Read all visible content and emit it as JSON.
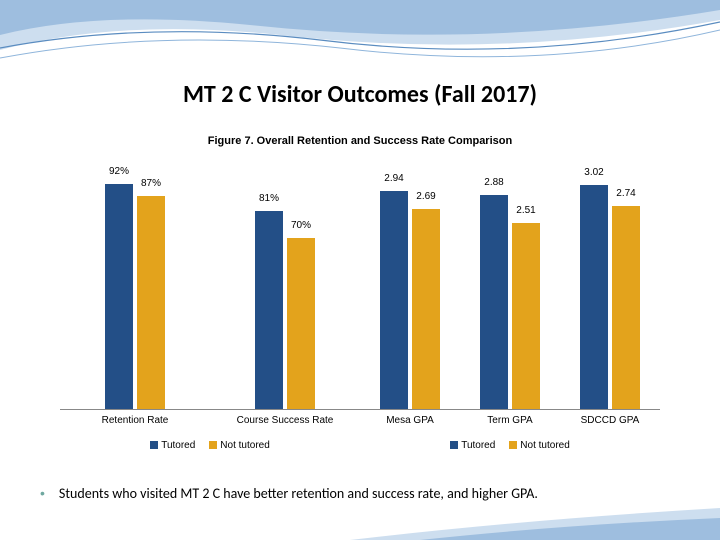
{
  "title": "MT 2 C Visitor Outcomes (Fall 2017)",
  "subtitle": "Figure 7. Overall Retention and Success Rate Comparison",
  "colors": {
    "tutored": "#234f87",
    "not_tutored": "#e3a31c",
    "bullet": "#6fa8a0",
    "wave1": "#7fa8d4",
    "wave2": "#b8d0e8"
  },
  "chart_left": {
    "type": "bar",
    "max": 100,
    "categories": [
      "Retention Rate",
      "Course Success Rate"
    ],
    "series": [
      {
        "name": "Tutored",
        "values": [
          92,
          81
        ],
        "labels": [
          "92%",
          "81%"
        ],
        "color": "#234f87"
      },
      {
        "name": "Not tutored",
        "values": [
          87,
          70
        ],
        "labels": [
          "87%",
          "70%"
        ],
        "color": "#e3a31c"
      }
    ],
    "legend": [
      "Tutored",
      "Not tutored"
    ]
  },
  "chart_right": {
    "type": "bar",
    "max": 3.3,
    "categories": [
      "Mesa GPA",
      "Term GPA",
      "SDCCD GPA"
    ],
    "series": [
      {
        "name": "Tutored",
        "values": [
          2.94,
          2.88,
          3.02
        ],
        "labels": [
          "2.94",
          "2.88",
          "3.02"
        ],
        "color": "#234f87"
      },
      {
        "name": "Not tutored",
        "values": [
          2.69,
          2.51,
          2.74
        ],
        "labels": [
          "2.69",
          "2.51",
          "2.74"
        ],
        "color": "#e3a31c"
      }
    ],
    "legend": [
      "Tutored",
      "Not tutored"
    ]
  },
  "bullet": "Students who visited MT 2 C have better retention and success rate, and higher GPA."
}
